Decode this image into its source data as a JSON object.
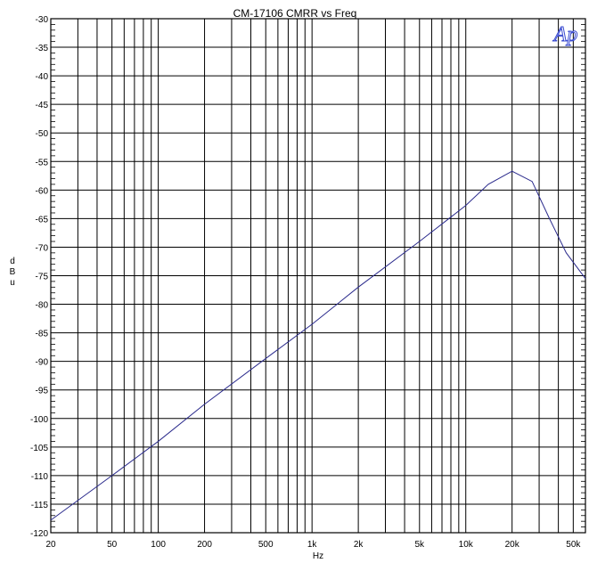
{
  "chart_data": {
    "type": "line",
    "title": "CM-17106   CMRR vs Freq",
    "logo": "Ap",
    "xlabel": "Hz",
    "ylabel": "d\nB\nu",
    "x_scale": "log",
    "xlim": [
      20,
      60000
    ],
    "ylim": [
      -120,
      -30
    ],
    "grid": true,
    "y_ticks": [
      -30,
      -35,
      -40,
      -45,
      -50,
      -55,
      -60,
      -65,
      -70,
      -75,
      -80,
      -85,
      -90,
      -95,
      -100,
      -105,
      -110,
      -115,
      -120
    ],
    "x_tick_values": [
      20,
      50,
      100,
      200,
      500,
      1000,
      2000,
      5000,
      10000,
      20000,
      50000
    ],
    "x_tick_labels": [
      "20",
      "50",
      "100",
      "200",
      "500",
      "1k",
      "2k",
      "5k",
      "10k",
      "20k",
      "50k"
    ],
    "line_color": "#2a2a8c",
    "series": [
      {
        "x": [
          20,
          50,
          100,
          200,
          500,
          1000,
          2000,
          5000,
          10000,
          14000,
          20000,
          27000,
          35000,
          45000,
          60000
        ],
        "y": [
          -117.8,
          -110,
          -104,
          -97.5,
          -89.5,
          -83.5,
          -77,
          -69,
          -62.7,
          -59,
          -56.7,
          -58.5,
          -65,
          -71,
          -75.5
        ]
      }
    ]
  }
}
